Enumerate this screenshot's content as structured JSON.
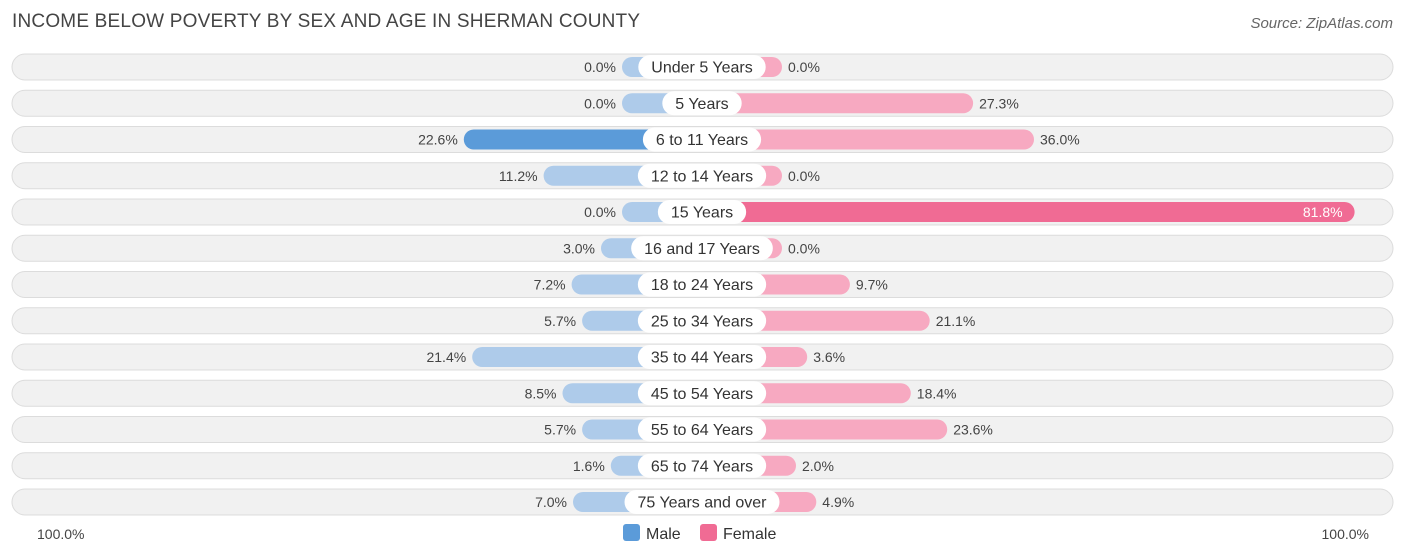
{
  "chart_data": {
    "type": "bar",
    "orientation": "horizontal-diverging",
    "title": "INCOME BELOW POVERTY BY SEX AND AGE IN SHERMAN COUNTY",
    "source": "Source: ZipAtlas.com",
    "categories": [
      "Under 5 Years",
      "5 Years",
      "6 to 11 Years",
      "12 to 14 Years",
      "15 Years",
      "16 and 17 Years",
      "18 to 24 Years",
      "25 to 34 Years",
      "35 to 44 Years",
      "45 to 54 Years",
      "55 to 64 Years",
      "65 to 74 Years",
      "75 Years and over"
    ],
    "series": [
      {
        "name": "Male",
        "values": [
          0.0,
          0.0,
          22.6,
          11.2,
          0.0,
          3.0,
          7.2,
          5.7,
          21.4,
          8.5,
          5.7,
          1.6,
          7.0
        ],
        "labels": [
          "0.0%",
          "0.0%",
          "22.6%",
          "11.2%",
          "0.0%",
          "3.0%",
          "7.2%",
          "5.7%",
          "21.4%",
          "8.5%",
          "5.7%",
          "1.6%",
          "7.0%"
        ]
      },
      {
        "name": "Female",
        "values": [
          0.0,
          27.3,
          36.0,
          0.0,
          81.8,
          0.0,
          9.7,
          21.1,
          3.6,
          18.4,
          23.6,
          2.0,
          4.9
        ],
        "labels": [
          "0.0%",
          "27.3%",
          "36.0%",
          "0.0%",
          "81.8%",
          "0.0%",
          "9.7%",
          "21.1%",
          "3.6%",
          "18.4%",
          "23.6%",
          "2.0%",
          "4.9%"
        ]
      }
    ],
    "xlim": [
      -100,
      100
    ],
    "axis_left_label": "100.0%",
    "axis_right_label": "100.0%",
    "legend": [
      {
        "name": "Male",
        "color": "#5b9bd9"
      },
      {
        "name": "Female",
        "color": "#f06b94"
      }
    ],
    "legend_placement": "bottom-center",
    "colors": {
      "male_light": "#aecbea",
      "male_dark": "#5b9bd9",
      "female_light": "#f7a9c1",
      "female_dark": "#f06b94",
      "track": "#f1f1f1",
      "track_border": "#dcdcdc"
    }
  }
}
